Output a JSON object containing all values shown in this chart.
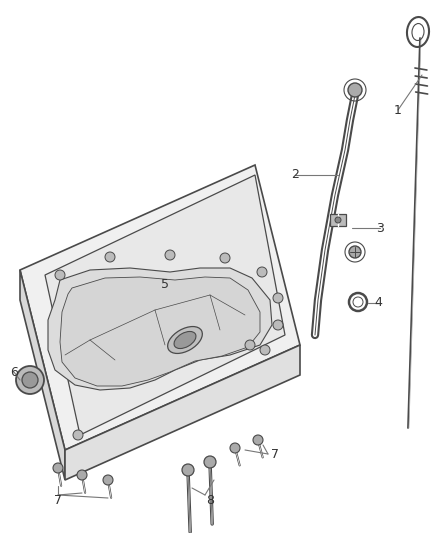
{
  "bg_color": "#ffffff",
  "line_color": "#4a4a4a",
  "light_gray": "#cccccc",
  "mid_gray": "#aaaaaa",
  "dark_gray": "#888888",
  "fig_width": 4.38,
  "fig_height": 5.33,
  "dpi": 100
}
